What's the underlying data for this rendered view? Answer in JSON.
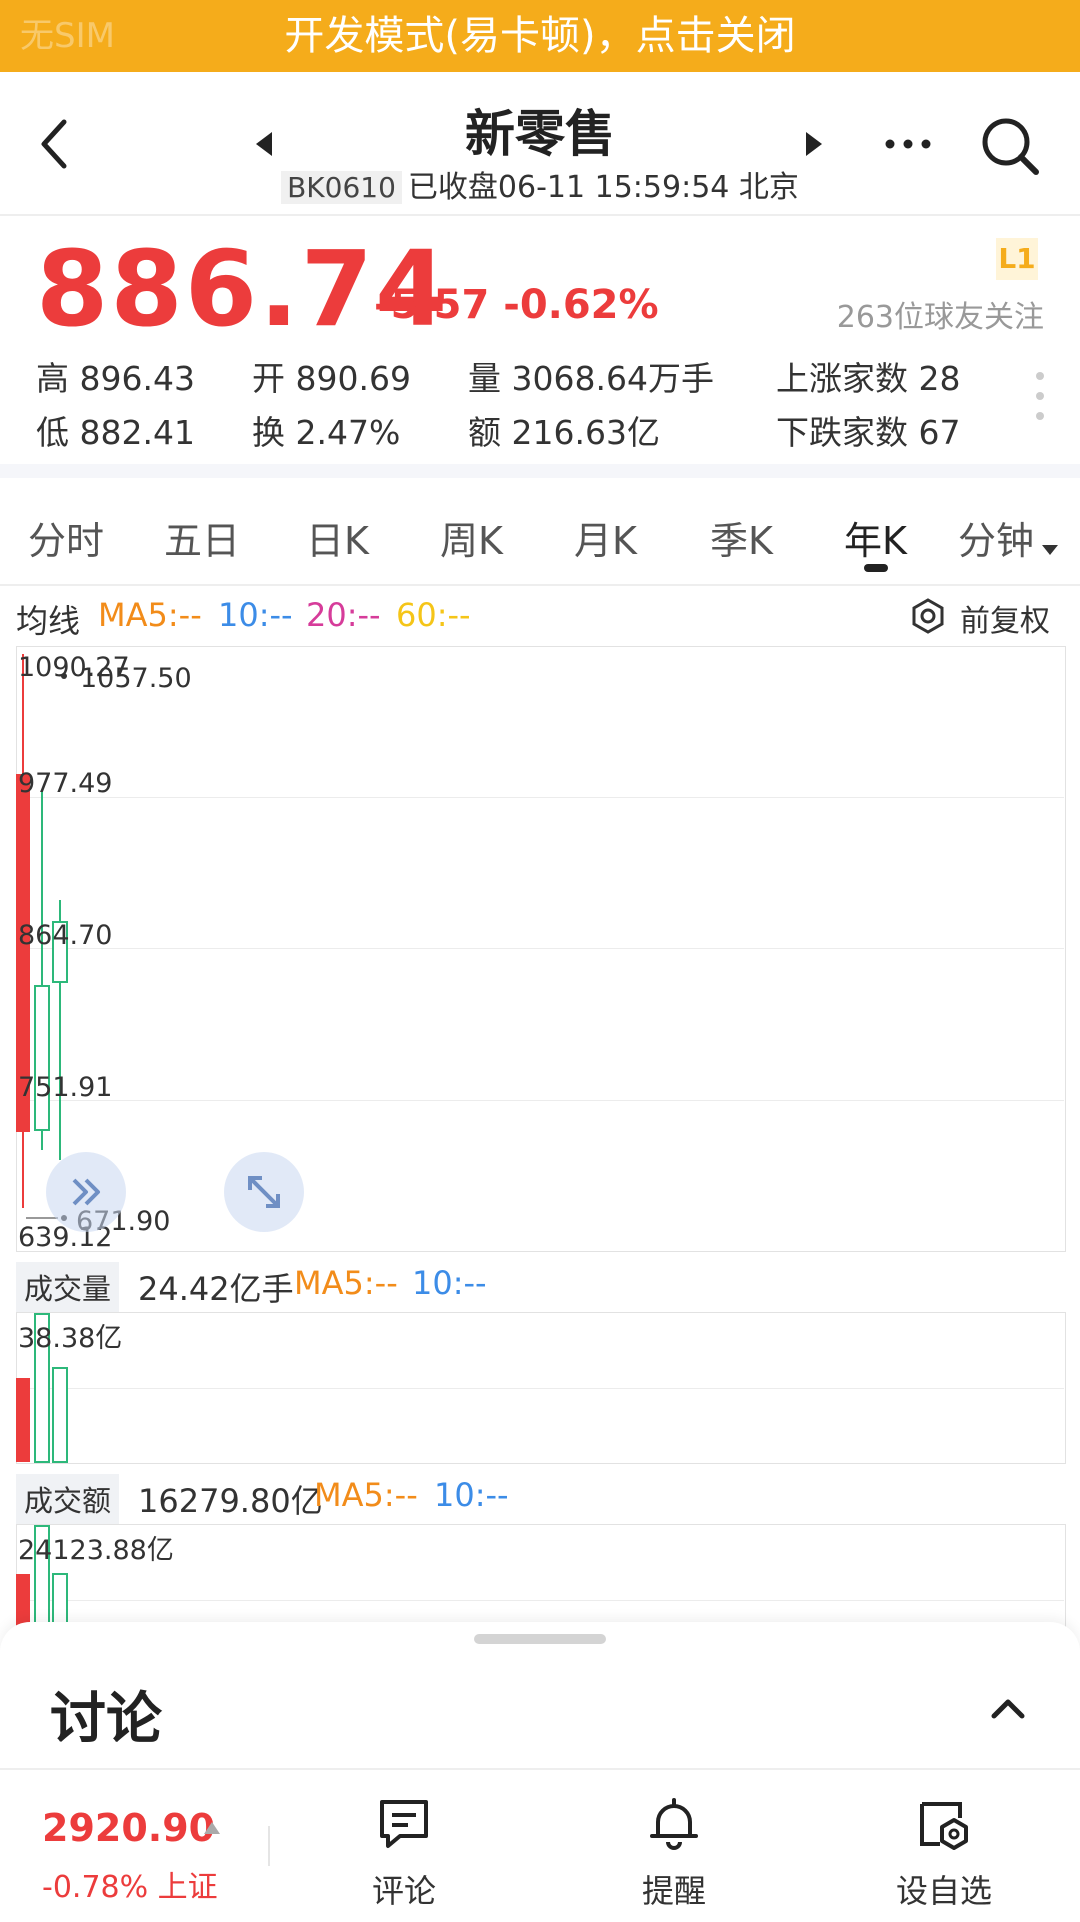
{
  "banner": {
    "text": "开发模式(易卡顿)，点击关闭",
    "ghost_left": "无SIM",
    "color": "#F5AC1B"
  },
  "header": {
    "title": "新零售",
    "code": "BK0610",
    "status": "已收盘06-11 15:59:54 北京"
  },
  "quote": {
    "price": "886.74",
    "change": "-5.57 -0.62%",
    "badge": "L1",
    "followers": "263位球友关注",
    "stats": {
      "high": "高 896.43",
      "low": "低 882.41",
      "open": "开 890.69",
      "turnover": "换 2.47%",
      "volume": "量 3068.64万手",
      "amount": "额 216.63亿",
      "rise_count": "上涨家数 28",
      "fall_count": "下跌家数 67"
    },
    "up_color": "#EC3C3C",
    "down_color": "#2DB87A"
  },
  "tabs": {
    "items": [
      "分时",
      "五日",
      "日K",
      "周K",
      "月K",
      "季K",
      "年K",
      "分钟"
    ],
    "active": "年K"
  },
  "ma": {
    "label": "均线",
    "ma5": "MA5:--",
    "ma10": "10:--",
    "ma20": "20:--",
    "ma60": "60:--",
    "adjust": "前复权",
    "colors": {
      "ma5": "#F28C1A",
      "ma10": "#3C8CE7",
      "ma20": "#D63C9A",
      "ma60": "#F5C518"
    }
  },
  "kline": {
    "axis_labels": [
      "1090.27",
      "977.49",
      "864.70",
      "751.91",
      "639.12"
    ],
    "max_marker": "1057.50",
    "min_marker": "671.90"
  },
  "volume": {
    "label": "成交量",
    "value": "24.42亿手",
    "ma5": "MA5:--",
    "ma10": "10:--",
    "axis_top": "38.38亿"
  },
  "amount": {
    "label": "成交额",
    "value": "16279.80亿",
    "ma5": "MA5:--",
    "ma10": "10:--",
    "axis_top": "24123.88亿"
  },
  "discussion": {
    "title": "讨论"
  },
  "bottom_bar": {
    "index_value": "2920.90",
    "index_change": "-0.78% 上证",
    "comment": "评论",
    "alert": "提醒",
    "watchlist": "设自选"
  }
}
